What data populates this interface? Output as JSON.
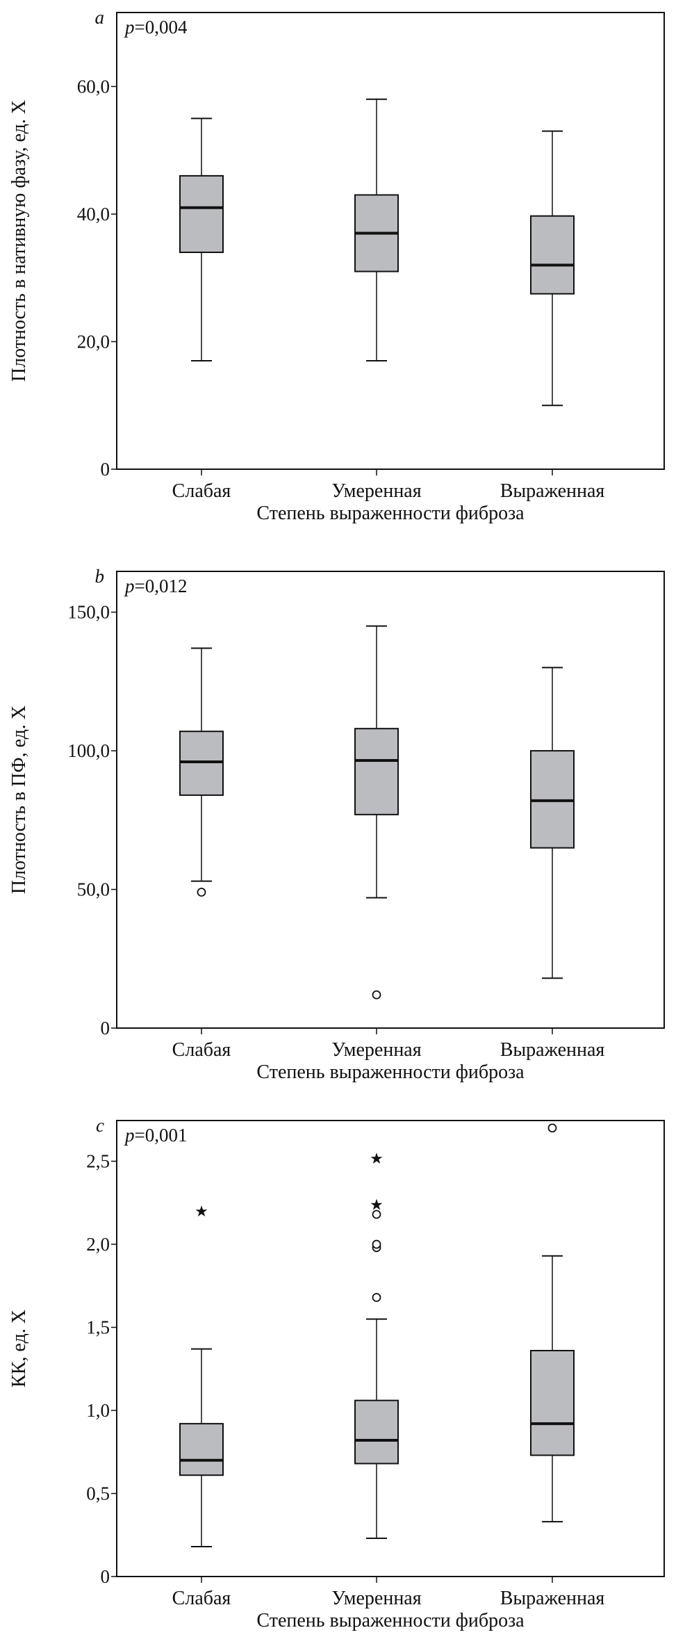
{
  "chart_data": [
    {
      "type": "boxplot",
      "panel_label": "a",
      "p_value_symbol": "p",
      "p_value_text": "=0,004",
      "xlabel": "Степень выраженности фиброза",
      "ylabel": "Плотность в нативную фазу, ед. Х",
      "ylim": [
        0,
        71.6
      ],
      "yticks": [
        0,
        20,
        40,
        60
      ],
      "ytick_labels": [
        "0",
        "20,0",
        "40,0",
        "60,0"
      ],
      "categories": [
        "Слабая",
        "Умеренная",
        "Выраженная"
      ],
      "boxes": [
        {
          "min": 17,
          "q1": 34,
          "median": 41,
          "q3": 46,
          "max": 55,
          "outliers": [],
          "extremes": []
        },
        {
          "min": 17,
          "q1": 31,
          "median": 37,
          "q3": 43,
          "max": 58,
          "outliers": [],
          "extremes": []
        },
        {
          "min": 10,
          "q1": 27.5,
          "median": 32,
          "q3": 39.7,
          "max": 53,
          "outliers": [],
          "extremes": []
        }
      ]
    },
    {
      "type": "boxplot",
      "panel_label": "b",
      "p_value_symbol": "p",
      "p_value_text": "=0,012",
      "xlabel": "Степень выраженности фиброза",
      "ylabel": "Плотность в ПФ, ед. Х",
      "ylim": [
        0,
        164.7
      ],
      "yticks": [
        0,
        50,
        100,
        150
      ],
      "ytick_labels": [
        "0",
        "50,0",
        "100,0",
        "150,0"
      ],
      "categories": [
        "Слабая",
        "Умеренная",
        "Выраженная"
      ],
      "boxes": [
        {
          "min": 53,
          "q1": 84,
          "median": 96,
          "q3": 107,
          "max": 137,
          "outliers": [
            49
          ],
          "extremes": []
        },
        {
          "min": 47,
          "q1": 77,
          "median": 96.5,
          "q3": 108,
          "max": 145,
          "outliers": [
            12
          ],
          "extremes": []
        },
        {
          "min": 18,
          "q1": 65,
          "median": 82,
          "q3": 100,
          "max": 130,
          "outliers": [],
          "extremes": []
        }
      ]
    },
    {
      "type": "boxplot",
      "panel_label": "c",
      "p_value_symbol": "p",
      "p_value_text": "=0,001",
      "xlabel": "Степень выраженности фиброза",
      "ylabel": "КК, ед. Х",
      "ylim": [
        0,
        2.745
      ],
      "yticks": [
        0,
        0.5,
        1.0,
        1.5,
        2.0,
        2.5
      ],
      "ytick_labels": [
        "0",
        "0,5",
        "1,0",
        "1,5",
        "2,0",
        "2,5"
      ],
      "categories": [
        "Слабая",
        "Умеренная",
        "Выраженная"
      ],
      "boxes": [
        {
          "min": 0.18,
          "q1": 0.61,
          "median": 0.7,
          "q3": 0.92,
          "max": 1.37,
          "outliers": [],
          "extremes": [
            2.2
          ]
        },
        {
          "min": 0.23,
          "q1": 0.68,
          "median": 0.82,
          "q3": 1.06,
          "max": 1.55,
          "outliers": [
            1.68,
            1.98,
            2.0,
            2.18
          ],
          "extremes": [
            2.24,
            2.52
          ]
        },
        {
          "min": 0.33,
          "q1": 0.73,
          "median": 0.92,
          "q3": 1.36,
          "max": 1.93,
          "outliers": [
            2.7
          ],
          "extremes": []
        }
      ]
    }
  ],
  "colors": {
    "box_fill": "#bbbcc0",
    "line": "#111111"
  }
}
